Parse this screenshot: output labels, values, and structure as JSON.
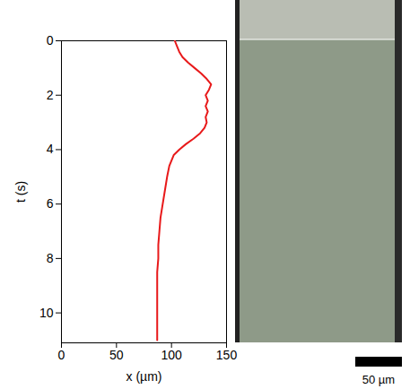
{
  "chart_data": {
    "type": "line",
    "x_label": "x (µm)",
    "y_label": "t (s)",
    "xlim": [
      0,
      150
    ],
    "xticks": [
      0,
      50,
      100,
      150
    ],
    "ylim": [
      11.1,
      0
    ],
    "yticks": [
      0,
      2,
      4,
      6,
      8,
      10
    ],
    "grid": false,
    "series": [
      {
        "color": "#e8191a",
        "t": [
          0,
          0.2,
          0.4,
          0.6,
          0.8,
          1.0,
          1.2,
          1.4,
          1.6,
          1.8,
          2.0,
          2.2,
          2.4,
          2.6,
          2.8,
          3.0,
          3.2,
          3.4,
          3.6,
          3.8,
          4.0,
          4.2,
          4.4,
          4.6,
          5.0,
          5.5,
          6.0,
          6.5,
          7.0,
          7.5,
          8.0,
          8.5,
          9.0,
          10.0,
          11.0
        ],
        "x": [
          103,
          105,
          107,
          110,
          115,
          121,
          127,
          132,
          136,
          134,
          131,
          133,
          131,
          133,
          131,
          132,
          130,
          126,
          120,
          113,
          107,
          102,
          100,
          98,
          96,
          94,
          92,
          90,
          89,
          88,
          88,
          87,
          87,
          87,
          87
        ]
      }
    ]
  },
  "scale_bar": {
    "label": "50 µm"
  }
}
